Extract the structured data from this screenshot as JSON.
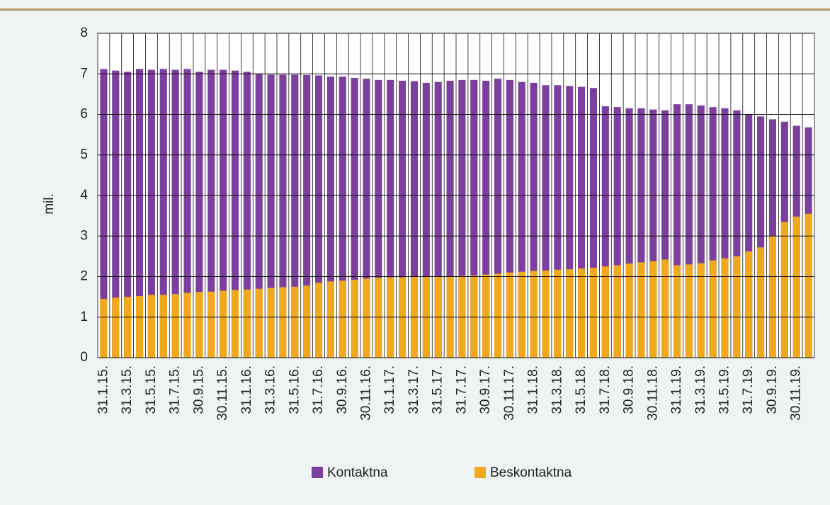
{
  "chart_data": {
    "type": "bar",
    "y_label": "mil.",
    "categories": [
      "31.1.15.",
      null,
      "31.3.15.",
      null,
      "31.5.15.",
      null,
      "31.7.15.",
      null,
      "30.9.15.",
      null,
      "30.11.15.",
      null,
      "31.1.16.",
      null,
      "31.3.16.",
      null,
      "31.5.16.",
      null,
      "31.7.16.",
      null,
      "30.9.16.",
      null,
      "30.11.16.",
      null,
      "31.1.17.",
      null,
      "31.3.17.",
      null,
      "31.5.17.",
      null,
      "31.7.17.",
      null,
      "30.9.17.",
      null,
      "30.11.17.",
      null,
      "31.1.18.",
      null,
      "31.3.18.",
      null,
      "31.5.18.",
      null,
      "31.7.18.",
      null,
      "30.9.18.",
      null,
      "30.11.18.",
      null,
      "31.1.19.",
      null,
      "31.3.19.",
      null,
      "31.5.19.",
      null,
      "31.7.19.",
      null,
      "30.9.19.",
      null,
      "30.11.19.",
      null
    ],
    "series": [
      {
        "name": "Kontaktna",
        "color": "#7b3f9e",
        "values": [
          7.12,
          7.08,
          7.05,
          7.12,
          7.1,
          7.12,
          7.1,
          7.12,
          7.05,
          7.1,
          7.1,
          7.08,
          7.05,
          7.0,
          6.98,
          6.98,
          6.98,
          6.97,
          6.96,
          6.93,
          6.93,
          6.9,
          6.88,
          6.85,
          6.85,
          6.83,
          6.82,
          6.78,
          6.8,
          6.83,
          6.85,
          6.85,
          6.83,
          6.88,
          6.85,
          6.8,
          6.78,
          6.72,
          6.72,
          6.7,
          6.68,
          6.65,
          6.2,
          6.18,
          6.15,
          6.15,
          6.12,
          6.1,
          6.25,
          6.25,
          6.22,
          6.18,
          6.15,
          6.1,
          6.0,
          5.95,
          5.88,
          5.82,
          5.72,
          5.68
        ]
      },
      {
        "name": "Beskontaktna",
        "color": "#f0a81c",
        "values": [
          1.45,
          1.48,
          1.5,
          1.52,
          1.55,
          1.55,
          1.57,
          1.6,
          1.62,
          1.63,
          1.65,
          1.67,
          1.68,
          1.7,
          1.72,
          1.74,
          1.75,
          1.78,
          1.85,
          1.88,
          1.9,
          1.92,
          1.95,
          1.97,
          1.98,
          1.98,
          1.99,
          2.0,
          2.0,
          2.01,
          2.02,
          2.03,
          2.05,
          2.07,
          2.1,
          2.12,
          2.14,
          2.15,
          2.17,
          2.18,
          2.2,
          2.22,
          2.25,
          2.28,
          2.32,
          2.35,
          2.38,
          2.42,
          2.28,
          2.3,
          2.33,
          2.4,
          2.45,
          2.5,
          2.62,
          2.72,
          3.0,
          3.35,
          3.48,
          3.55
        ]
      }
    ],
    "ylim": [
      0,
      8
    ],
    "yticks": [
      0,
      1,
      2,
      3,
      4,
      5,
      6,
      7,
      8
    ],
    "grid": true,
    "legend": "bottom"
  }
}
